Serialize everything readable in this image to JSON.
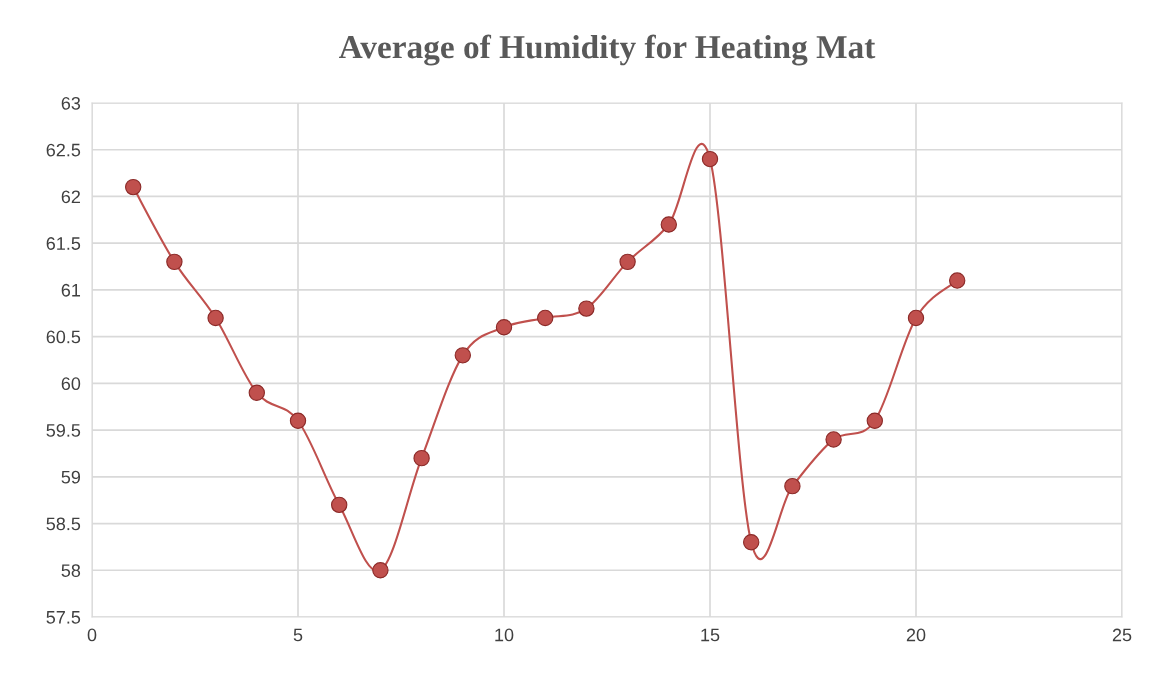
{
  "chart_data": {
    "type": "line",
    "title": "Average of Humidity for Heating Mat",
    "x": [
      1,
      2,
      3,
      4,
      5,
      6,
      7,
      8,
      9,
      10,
      11,
      12,
      13,
      14,
      15,
      16,
      17,
      18,
      19,
      20,
      21
    ],
    "series": [
      {
        "color": "#c0504d",
        "values": [
          62.1,
          61.3,
          60.7,
          59.9,
          59.6,
          58.7,
          58.0,
          59.2,
          60.3,
          60.6,
          60.7,
          60.8,
          61.3,
          61.7,
          62.4,
          58.3,
          58.9,
          59.4,
          59.6,
          60.7,
          61.1
        ]
      }
    ],
    "xlim": [
      0,
      25
    ],
    "xticks": [
      0,
      5,
      10,
      15,
      20,
      25
    ],
    "ylim": [
      57.5,
      63
    ],
    "yticks": [
      57.5,
      58,
      58.5,
      59,
      59.5,
      60,
      60.5,
      61,
      61.5,
      62,
      62.5,
      63
    ],
    "grid": true,
    "marker": "circle",
    "line_style": "solid"
  }
}
